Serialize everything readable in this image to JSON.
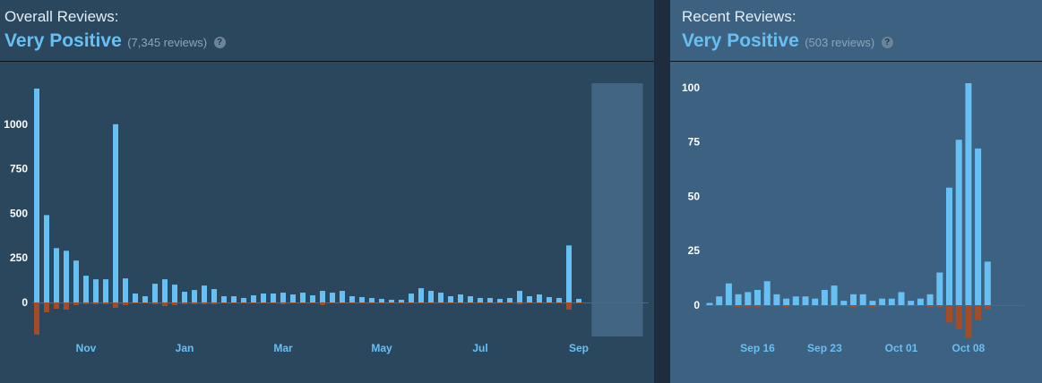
{
  "overall": {
    "title": "Overall Reviews:",
    "rating": "Very Positive",
    "count_text": "(7,345 reviews)",
    "help_icon": "?"
  },
  "recent": {
    "title": "Recent Reviews:",
    "rating": "Very Positive",
    "count_text": "(503 reviews)",
    "help_icon": "?"
  },
  "colors": {
    "positive": "#66c0f4",
    "negative": "#a34c25",
    "panel_overall": "#2a475e",
    "panel_recent": "#3d6181",
    "highlight": "#426584"
  },
  "chart_data": [
    {
      "type": "bar",
      "title": "Overall Reviews",
      "ylim": [
        -180,
        1230
      ],
      "y_ticks": [
        "0",
        "250",
        "500",
        "750",
        "1000"
      ],
      "y_tick_values": [
        0,
        250,
        500,
        750,
        1000
      ],
      "x_tick_labels": [
        "Nov",
        "Jan",
        "Mar",
        "May",
        "Jul",
        "Sep"
      ],
      "x_tick_index": [
        5,
        15,
        25,
        35,
        45,
        55
      ],
      "highlight_range": [
        56.3,
        61.5
      ],
      "series": [
        {
          "role": "positive",
          "values": [
            1200,
            490,
            305,
            290,
            235,
            150,
            130,
            130,
            1000,
            135,
            50,
            35,
            105,
            130,
            100,
            60,
            70,
            95,
            75,
            35,
            35,
            25,
            40,
            50,
            50,
            55,
            45,
            55,
            40,
            65,
            55,
            65,
            35,
            30,
            25,
            20,
            15,
            15,
            50,
            80,
            65,
            55,
            35,
            45,
            35,
            25,
            25,
            20,
            25,
            65,
            35,
            45,
            30,
            25,
            320,
            20
          ]
        },
        {
          "role": "negative",
          "values": [
            -180,
            -55,
            -35,
            -40,
            -15,
            -10,
            -10,
            -10,
            -30,
            -15,
            -5,
            -5,
            -10,
            -20,
            -15,
            -10,
            -10,
            -10,
            -10,
            -5,
            -5,
            -5,
            -5,
            -5,
            -5,
            -10,
            -5,
            -5,
            -5,
            -15,
            -5,
            -5,
            -5,
            -5,
            -5,
            -5,
            -5,
            -5,
            -5,
            -5,
            -5,
            -5,
            -5,
            -5,
            -5,
            -5,
            -5,
            -5,
            -5,
            -10,
            -5,
            -5,
            -5,
            -5,
            -40,
            -5
          ]
        }
      ]
    },
    {
      "type": "bar",
      "title": "Recent Reviews",
      "ylim": [
        -15,
        102
      ],
      "y_ticks": [
        "0",
        "25",
        "50",
        "75",
        "100"
      ],
      "y_tick_values": [
        0,
        25,
        50,
        75,
        100
      ],
      "x_tick_labels": [
        "Sep 16",
        "Sep 23",
        "Oct 01",
        "Oct 08"
      ],
      "x_tick_index": [
        5,
        12,
        20,
        27
      ],
      "series": [
        {
          "role": "positive",
          "values": [
            1,
            4,
            10,
            5,
            6,
            7,
            11,
            5,
            3,
            4,
            4,
            3,
            7,
            9,
            2,
            5,
            5,
            2,
            3,
            3,
            6,
            2,
            3,
            5,
            15,
            54,
            76,
            102,
            72,
            20
          ]
        },
        {
          "role": "negative",
          "values": [
            0,
            0,
            0,
            -1,
            -1,
            -1,
            0,
            0,
            -1,
            0,
            0,
            0,
            0,
            0,
            0,
            -1,
            0,
            -1,
            0,
            0,
            0,
            0,
            0,
            -1,
            -1,
            -8,
            -11,
            -15,
            -7,
            -2
          ]
        }
      ]
    }
  ]
}
